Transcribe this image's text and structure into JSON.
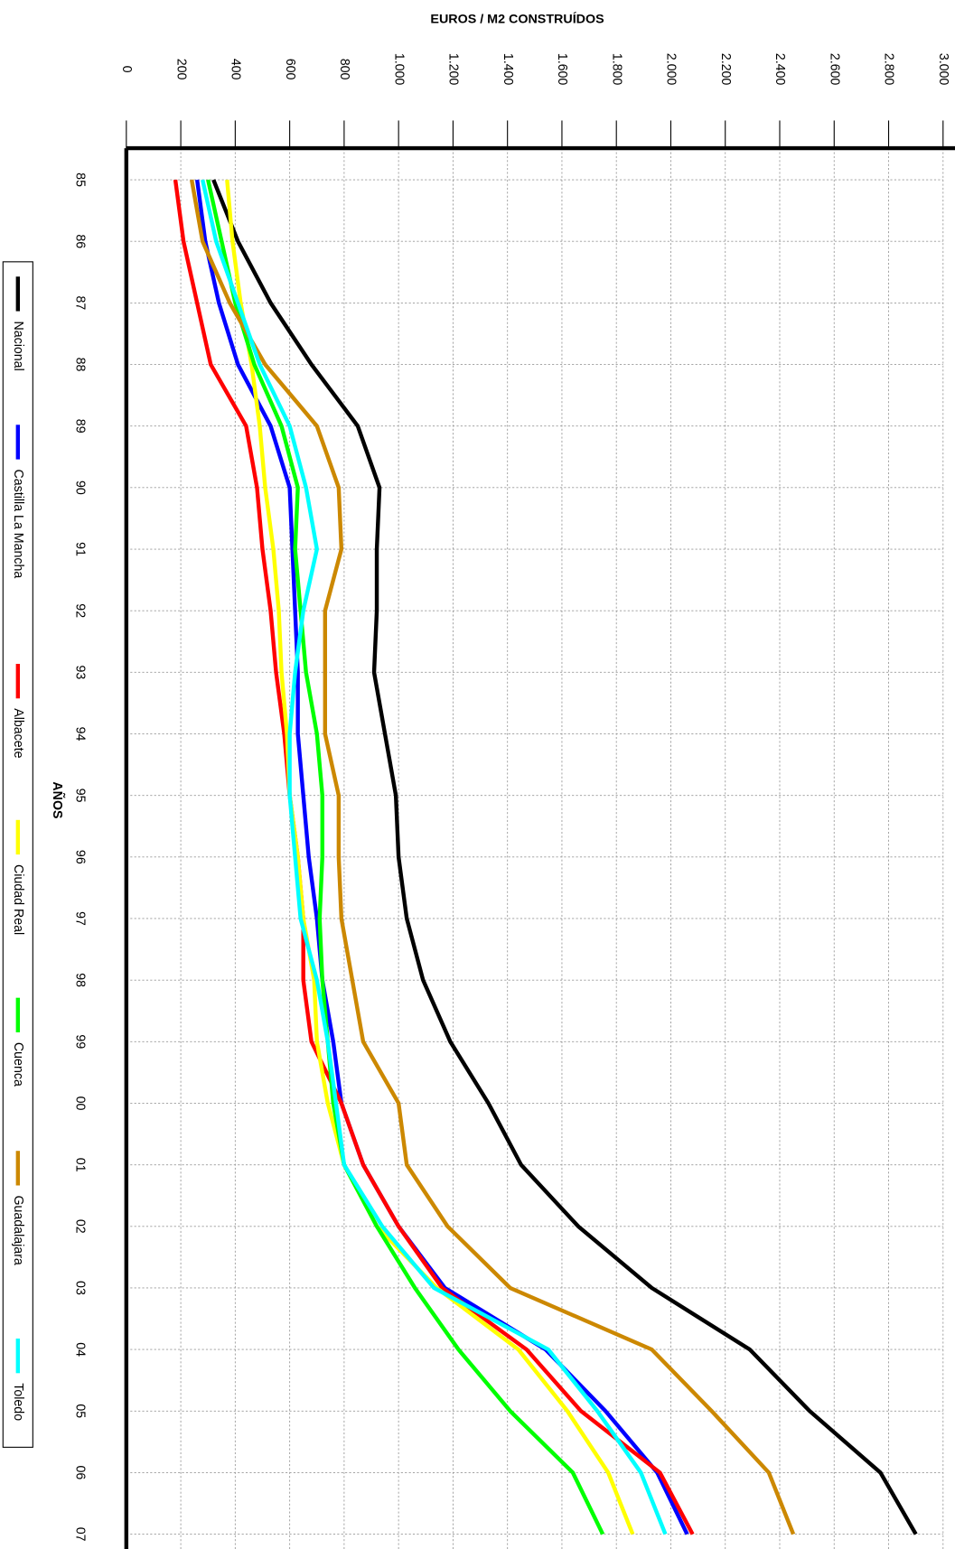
{
  "chart_data": {
    "type": "line",
    "orientation": "horizontal",
    "title": "EUROS / M2 CONSTRUÍDOS",
    "x_label": "AÑOS",
    "categories": [
      "85",
      "86",
      "87",
      "88",
      "89",
      "90",
      "91",
      "92",
      "93",
      "94",
      "95",
      "96",
      "97",
      "98",
      "99",
      "00",
      "01",
      "02",
      "03",
      "04",
      "05",
      "06",
      "07"
    ],
    "ylim": [
      0,
      3000
    ],
    "yticks": [
      0,
      200,
      400,
      600,
      800,
      {
        "value": 1000,
        "label": "1.000"
      },
      {
        "value": 1200,
        "label": "1.200"
      },
      {
        "value": 1400,
        "label": "1.400"
      },
      {
        "value": 1600,
        "label": "1.600"
      },
      {
        "value": 1800,
        "label": "1.800"
      },
      {
        "value": 2000,
        "label": "2.000"
      },
      {
        "value": 2200,
        "label": "2.200"
      },
      {
        "value": 2400,
        "label": "2.400"
      },
      {
        "value": 2600,
        "label": "2.600"
      },
      {
        "value": 2800,
        "label": "2.800"
      },
      {
        "value": 3000,
        "label": "3.000"
      }
    ],
    "grid": true,
    "series": [
      {
        "name": "Nacional",
        "color": "#000000",
        "values": [
          320,
          410,
          530,
          680,
          850,
          930,
          920,
          920,
          910,
          950,
          990,
          1000,
          1030,
          1090,
          1190,
          1330,
          1450,
          1660,
          1930,
          2290,
          2510,
          2770,
          2900
        ]
      },
      {
        "name": "Castilla La Mancha",
        "color": "#0000ff",
        "values": [
          260,
          290,
          340,
          410,
          530,
          600,
          610,
          620,
          630,
          630,
          650,
          670,
          700,
          720,
          760,
          790,
          870,
          1000,
          1170,
          1540,
          1760,
          1950,
          2060
        ]
      },
      {
        "name": "Albacete",
        "color": "#ff0000",
        "values": [
          180,
          210,
          260,
          310,
          440,
          480,
          500,
          530,
          550,
          580,
          600,
          630,
          650,
          650,
          680,
          790,
          870,
          1000,
          1160,
          1470,
          1670,
          1960,
          2080
        ]
      },
      {
        "name": "Ciudad Real",
        "color": "#ffff00",
        "values": [
          370,
          390,
          420,
          460,
          490,
          510,
          540,
          560,
          570,
          590,
          600,
          630,
          650,
          690,
          700,
          740,
          800,
          920,
          1140,
          1440,
          1620,
          1770,
          1860
        ]
      },
      {
        "name": "Cuenca",
        "color": "#00ff00",
        "values": [
          300,
          350,
          400,
          470,
          570,
          630,
          620,
          640,
          660,
          700,
          720,
          720,
          710,
          720,
          740,
          760,
          800,
          920,
          1060,
          1220,
          1410,
          1640,
          1750
        ]
      },
      {
        "name": "Guadalajara",
        "color": "#cc8800",
        "values": [
          240,
          280,
          380,
          510,
          700,
          780,
          790,
          730,
          730,
          730,
          780,
          780,
          790,
          830,
          870,
          1000,
          1030,
          1180,
          1410,
          1930,
          2150,
          2360,
          2450
        ]
      },
      {
        "name": "Toledo",
        "color": "#00ffff",
        "values": [
          280,
          330,
          410,
          490,
          600,
          660,
          700,
          650,
          620,
          600,
          600,
          620,
          640,
          700,
          740,
          770,
          800,
          940,
          1130,
          1550,
          1730,
          1890,
          1980
        ]
      }
    ]
  }
}
